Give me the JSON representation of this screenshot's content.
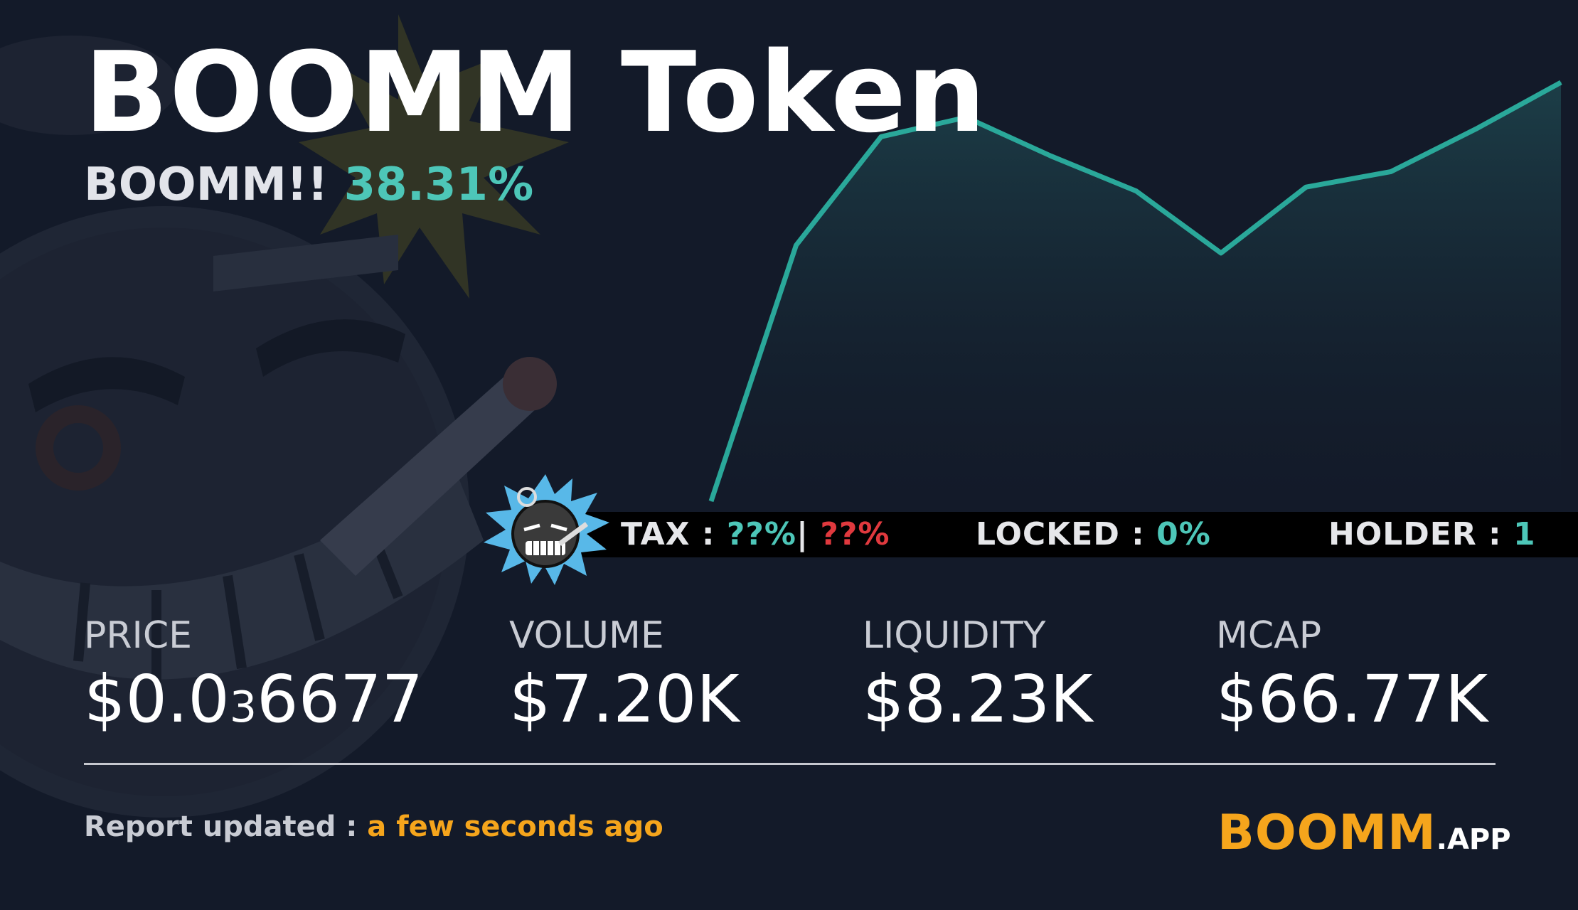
{
  "token": {
    "name": "BOOMM Token",
    "subtitle_label": "BOOMM!!",
    "change_percent": "38.31%"
  },
  "info_strip": {
    "tax_label": "TAX : ",
    "tax_buy": "??%",
    "tax_separator": "| ",
    "tax_sell": "??%",
    "locked_label": "LOCKED : ",
    "locked_value": "0%",
    "holder_label": "HOLDER : ",
    "holder_value": "1"
  },
  "stats": {
    "price": {
      "label": "PRICE",
      "prefix": "$0.0",
      "zeros_subscript": "3",
      "digits": "6677"
    },
    "volume": {
      "label": "VOLUME",
      "value": "$7.20K"
    },
    "liquidity": {
      "label": "LIQUIDITY",
      "value": "$8.23K"
    },
    "mcap": {
      "label": "MCAP",
      "value": "$66.77K"
    }
  },
  "footer": {
    "report_label": "Report updated : ",
    "report_time": "a few seconds ago",
    "brand_main": "BOOMM",
    "brand_suffix": ".APP"
  },
  "colors": {
    "background": "#131a29",
    "line": "#2aa89a",
    "teal_text": "#4dc6b8",
    "red_text": "#e0393e",
    "orange": "#f5a51c"
  },
  "icons": {
    "mascot": "bomb-mascot-icon",
    "badge": "bomb-badge-icon"
  },
  "chart_data": {
    "type": "area",
    "title": "",
    "xlabel": "",
    "ylabel": "",
    "grid": false,
    "legend": "none",
    "x": [
      0,
      1,
      2,
      3,
      4,
      5,
      6,
      7,
      8,
      9,
      10
    ],
    "series": [
      {
        "values": [
          0.0,
          0.66,
          0.94,
          0.99,
          0.89,
          0.8,
          0.64,
          0.81,
          0.85,
          0.96,
          1.08
        ]
      }
    ],
    "ylim": [
      0,
      1.1
    ]
  }
}
